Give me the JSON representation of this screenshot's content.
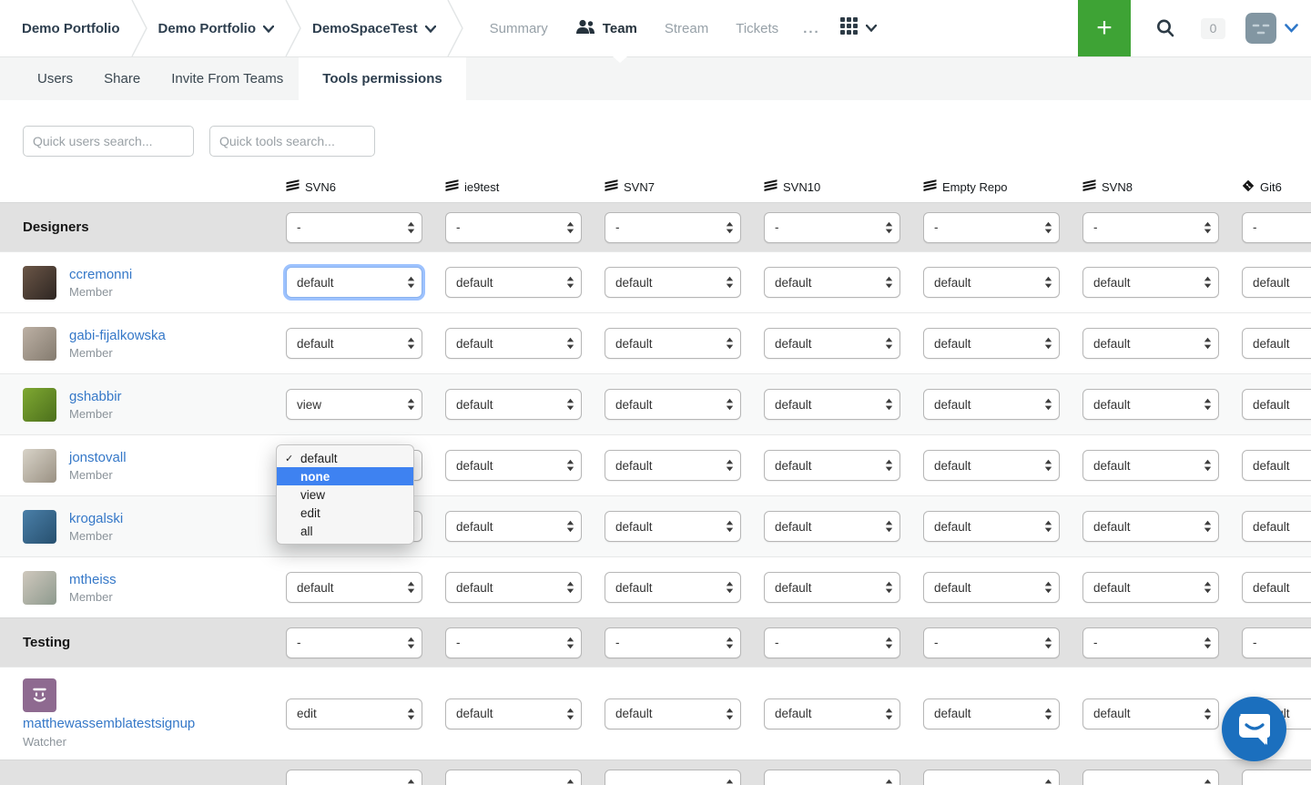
{
  "topbar": {
    "breadcrumb": [
      {
        "label": "Demo Portfolio",
        "dropdown": false
      },
      {
        "label": "Demo Portfolio",
        "dropdown": true
      },
      {
        "label": "DemoSpaceTest",
        "dropdown": true
      }
    ],
    "nav": [
      {
        "label": "Summary",
        "active": false
      },
      {
        "label": "Team",
        "active": true,
        "icon": "people-icon"
      },
      {
        "label": "Stream",
        "active": false
      },
      {
        "label": "Tickets",
        "active": false
      },
      {
        "label": "...",
        "active": false,
        "dots": true
      }
    ],
    "add_button_label": "+",
    "notification_count": "0"
  },
  "tabs": [
    {
      "label": "Users",
      "active": false
    },
    {
      "label": "Share",
      "active": false
    },
    {
      "label": "Invite From Teams",
      "active": false
    },
    {
      "label": "Tools permissions",
      "active": true
    }
  ],
  "search": {
    "users_placeholder": "Quick users search...",
    "tools_placeholder": "Quick tools search..."
  },
  "table": {
    "columns": [
      {
        "name": "SVN6",
        "icon": "svn-icon"
      },
      {
        "name": "ie9test",
        "icon": "svn-icon"
      },
      {
        "name": "SVN7",
        "icon": "svn-icon"
      },
      {
        "name": "SVN10",
        "icon": "svn-icon"
      },
      {
        "name": "Empty Repo",
        "icon": "svn-icon"
      },
      {
        "name": "SVN8",
        "icon": "svn-icon"
      },
      {
        "name": "Git6",
        "icon": "git-icon"
      }
    ],
    "rows": [
      {
        "type": "group",
        "id": "designers",
        "label": "Designers",
        "values": [
          "-",
          "-",
          "-",
          "-",
          "-",
          "-",
          "-"
        ]
      },
      {
        "type": "user",
        "id": "ccremonni",
        "name": "ccremonni",
        "role": "Member",
        "avatar_colors": [
          "#6b5647",
          "#2e2622"
        ],
        "focused_col": 0,
        "values": [
          "default",
          "default",
          "default",
          "default",
          "default",
          "default",
          "default"
        ]
      },
      {
        "type": "user",
        "id": "gabi-fijalkowska",
        "name": "gabi-fijalkowska",
        "role": "Member",
        "avatar_colors": [
          "#bcb0a4",
          "#847b6f"
        ],
        "values": [
          "default",
          "default",
          "default",
          "default",
          "default",
          "default",
          "default"
        ]
      },
      {
        "type": "user",
        "id": "gshabbir",
        "name": "gshabbir",
        "role": "Member",
        "shaded": true,
        "avatar_colors": [
          "#7fa832",
          "#4c701c"
        ],
        "values": [
          "view",
          "default",
          "default",
          "default",
          "default",
          "default",
          "default"
        ]
      },
      {
        "type": "user",
        "id": "jonstovall",
        "name": "jonstovall",
        "role": "Member",
        "avatar_colors": [
          "#d8d3c8",
          "#9a9183"
        ],
        "values": [
          "edit",
          "default",
          "default",
          "default",
          "default",
          "default",
          "default"
        ]
      },
      {
        "type": "user",
        "id": "krogalski",
        "name": "krogalski",
        "role": "Member",
        "shaded": true,
        "avatar_colors": [
          "#4a7fa8",
          "#27506f"
        ],
        "values": [
          "default",
          "default",
          "default",
          "default",
          "default",
          "default",
          "default"
        ]
      },
      {
        "type": "user",
        "id": "mtheiss",
        "name": "mtheiss",
        "role": "Member",
        "avatar_colors": [
          "#cfc8bd",
          "#8e9a8e"
        ],
        "values": [
          "default",
          "default",
          "default",
          "default",
          "default",
          "default",
          "default"
        ]
      },
      {
        "type": "group",
        "id": "testing",
        "label": "Testing",
        "values": [
          "-",
          "-",
          "-",
          "-",
          "-",
          "-",
          "-"
        ]
      },
      {
        "type": "user",
        "id": "matthewassemblatestsignup",
        "name": "matthewassemblatestsignup",
        "role": "Watcher",
        "stacked": true,
        "avatar_color": "#8e6a90",
        "avatar_glyph": "face",
        "values": [
          "edit",
          "default",
          "default",
          "default",
          "default",
          "default",
          "default"
        ]
      },
      {
        "type": "group",
        "id": "partial-group",
        "label": "",
        "values": [
          "",
          "",
          "",
          "",
          "",
          "",
          ""
        ]
      }
    ],
    "dropdown": {
      "user": "ccremonni",
      "column": "SVN6",
      "options": [
        {
          "label": "default",
          "checked": true
        },
        {
          "label": "none",
          "highlighted": true
        },
        {
          "label": "view"
        },
        {
          "label": "edit"
        },
        {
          "label": "all"
        }
      ]
    }
  },
  "colors": {
    "accent_green": "#3ea335",
    "link_blue": "#3578c8",
    "menu_highlight_blue": "#3e82f1",
    "chat_blue": "#1b6fbe",
    "group_row_gray": "#e1e1e1"
  },
  "chat": {
    "launcher": "chat-bubble-smile"
  }
}
